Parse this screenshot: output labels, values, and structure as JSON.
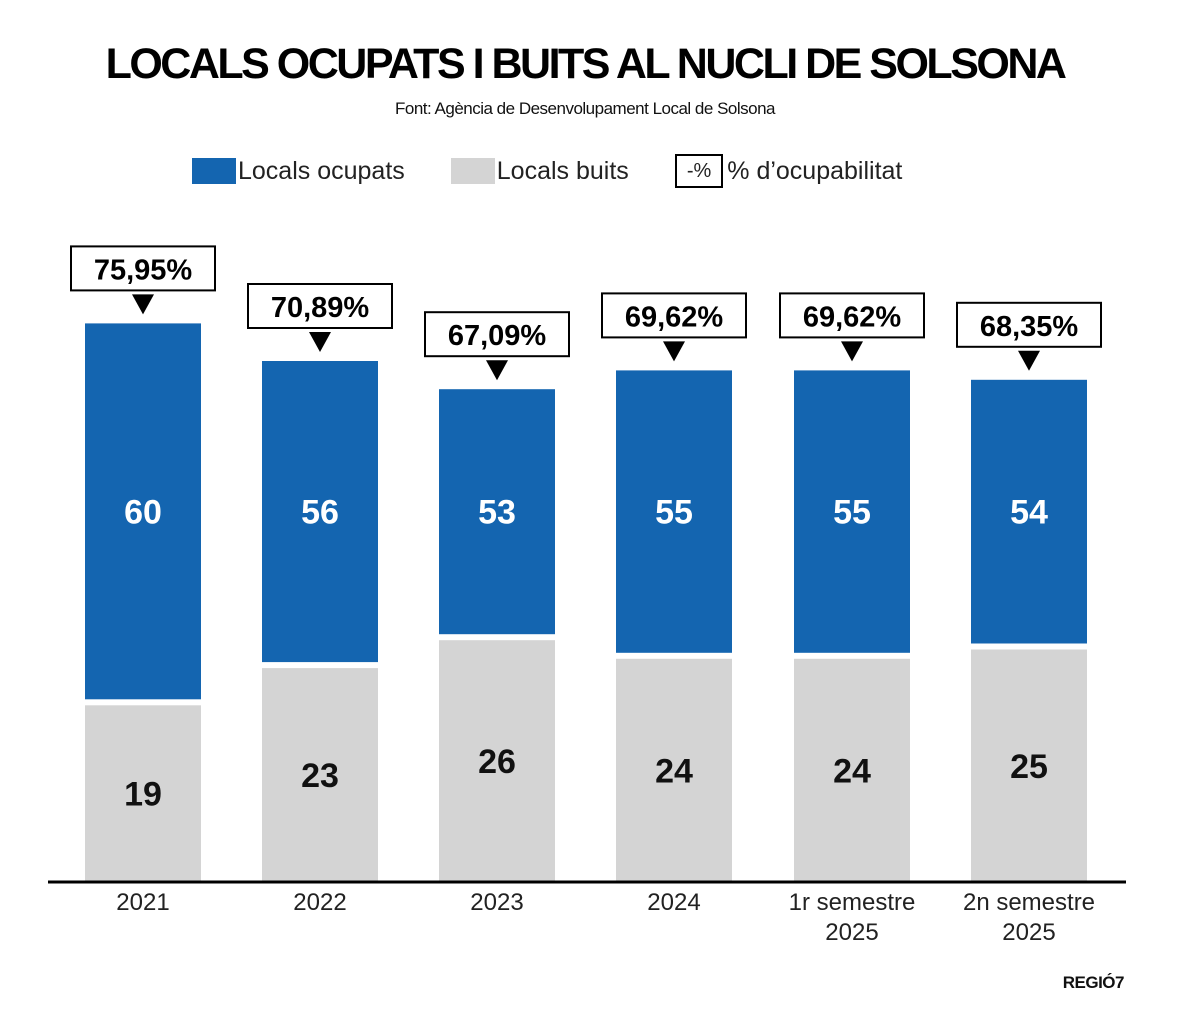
{
  "title": "LOCALS OCUPATS I BUITS AL NUCLI DE SOLSONA",
  "subtitle": "Font: Agència de Desenvolupament Local de Solsona",
  "credit": "REGIÓ7",
  "legend": {
    "occupied": "Locals ocupats",
    "empty": "Locals buits",
    "pct_box": "-%",
    "pct": "% d’ocupabilitat"
  },
  "colors": {
    "occupied": "#1465b0",
    "empty": "#d4d4d4"
  },
  "chart_data": {
    "type": "bar",
    "stacked": true,
    "categories": [
      "2021",
      "2022",
      "2023",
      "2024",
      "1r semestre 2025",
      "2n semestre 2025"
    ],
    "series": [
      {
        "name": "Locals ocupats",
        "values": [
          60,
          56,
          53,
          55,
          55,
          54
        ]
      },
      {
        "name": "Locals buits",
        "values": [
          19,
          23,
          26,
          24,
          24,
          25
        ]
      }
    ],
    "annotations": [
      "75,95%",
      "70,89%",
      "67,09%",
      "69,62%",
      "69,62%",
      "68,35%"
    ],
    "legend_position": "top",
    "grid": false
  }
}
